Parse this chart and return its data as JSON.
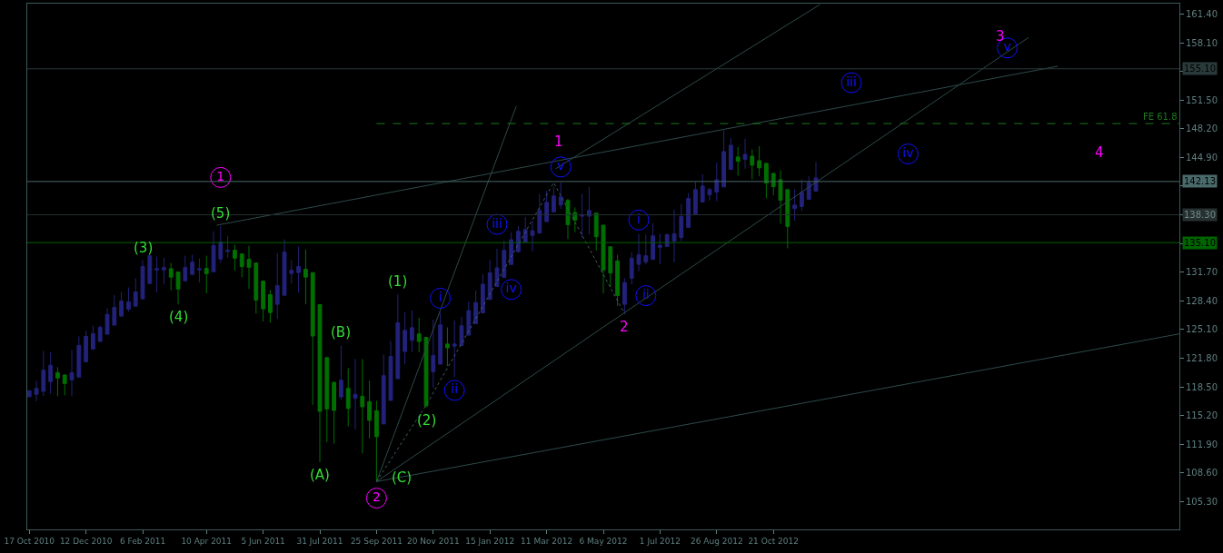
{
  "chart_data": {
    "type": "candlestick",
    "x": [
      "2010-10-17",
      "2010-10-24",
      "2010-10-31",
      "2010-11-07",
      "2010-11-14",
      "2010-11-21",
      "2010-11-28",
      "2010-12-05",
      "2010-12-12",
      "2010-12-19",
      "2010-12-26",
      "2011-01-02",
      "2011-01-09",
      "2011-01-16",
      "2011-01-23",
      "2011-01-30",
      "2011-02-06",
      "2011-02-13",
      "2011-02-20",
      "2011-02-27",
      "2011-03-06",
      "2011-03-13",
      "2011-03-20",
      "2011-03-27",
      "2011-04-03",
      "2011-04-10",
      "2011-04-17",
      "2011-04-24",
      "2011-05-01",
      "2011-05-08",
      "2011-05-15",
      "2011-05-22",
      "2011-05-29",
      "2011-06-05",
      "2011-06-12",
      "2011-06-19",
      "2011-06-26",
      "2011-07-03",
      "2011-07-10",
      "2011-07-17",
      "2011-07-24",
      "2011-07-31",
      "2011-08-07",
      "2011-08-14",
      "2011-08-21",
      "2011-08-28",
      "2011-09-04",
      "2011-09-11",
      "2011-09-18",
      "2011-09-25",
      "2011-10-02",
      "2011-10-09",
      "2011-10-16",
      "2011-10-23",
      "2011-10-30",
      "2011-11-06",
      "2011-11-13",
      "2011-11-20",
      "2011-11-27",
      "2011-12-04",
      "2011-12-11",
      "2011-12-18",
      "2011-12-25",
      "2012-01-01",
      "2012-01-08",
      "2012-01-15",
      "2012-01-22",
      "2012-01-29",
      "2012-02-05",
      "2012-02-12",
      "2012-02-19",
      "2012-02-26",
      "2012-03-04",
      "2012-03-11",
      "2012-03-18",
      "2012-03-25",
      "2012-04-01",
      "2012-04-08",
      "2012-04-15",
      "2012-04-22",
      "2012-04-29",
      "2012-05-06",
      "2012-05-13",
      "2012-05-20",
      "2012-05-27",
      "2012-06-03",
      "2012-06-10",
      "2012-06-17",
      "2012-06-24",
      "2012-07-01",
      "2012-07-08",
      "2012-07-15",
      "2012-07-22",
      "2012-07-29",
      "2012-08-05",
      "2012-08-12",
      "2012-08-19",
      "2012-08-26",
      "2012-09-02",
      "2012-09-09",
      "2012-09-16",
      "2012-09-23",
      "2012-09-30",
      "2012-10-07",
      "2012-10-14",
      "2012-10-21",
      "2012-10-28",
      "2012-11-04",
      "2012-11-11",
      "2012-11-18",
      "2012-11-25",
      "2012-12-02"
    ],
    "series": [
      {
        "type": "line",
        "color": "#2f4a4a",
        "line_style": "solid",
        "x": [
          "2011-09-25",
          "2013-11-26"
        ],
        "values": [
          107.6,
          124.6
        ]
      },
      {
        "type": "line",
        "color": "#2f4a4a",
        "line_style": "solid",
        "x": [
          "2011-09-25",
          "2013-06-30"
        ],
        "values": [
          107.6,
          158.7
        ]
      },
      {
        "type": "line",
        "color": "#2f4a4a",
        "line_style": "solid",
        "x": [
          "2011-09-25",
          "2012-02-10"
        ],
        "values": [
          107.6,
          150.8
        ]
      },
      {
        "type": "line",
        "color": "#2f4a4a",
        "line_style": "solid",
        "x": [
          "2012-03-20",
          "2012-12-06"
        ],
        "values": [
          143.6,
          162.5
        ]
      },
      {
        "type": "line",
        "color": "#2f4a4a",
        "line_style": "solid",
        "x": [
          "2011-04-20",
          "2013-07-29"
        ],
        "values": [
          137.1,
          155.4
        ]
      },
      {
        "type": "line",
        "color": "#3f5f5f",
        "line_style": "dotted",
        "x": [
          "2011-09-25",
          "2011-11-13",
          "2012-03-18",
          "2012-05-27"
        ],
        "values": [
          107.6,
          116.4,
          142.0,
          126.9
        ]
      },
      {
        "type": "line",
        "name": "FE 61.8",
        "color": "#1e7a1e",
        "line_style": "dashed",
        "x": [
          "2011-09-25",
          "2013-11-26"
        ],
        "values": [
          148.8,
          148.8
        ]
      },
      {
        "type": "scatter",
        "marker": "circle",
        "color": "#ff00ff",
        "x": [
          "2011-04-24",
          "2011-09-25"
        ],
        "values": [
          142.6,
          105.7
        ]
      },
      {
        "type": "scatter",
        "marker": "circle",
        "color": "#1010ff",
        "x": [
          "2011-11-27",
          "2011-12-11",
          "2012-01-22",
          "2012-02-05",
          "2012-03-25",
          "2012-06-10",
          "2012-06-17",
          "2013-01-06",
          "2013-03-03",
          "2013-06-09"
        ],
        "values": [
          128.7,
          118.1,
          137.2,
          129.7,
          143.8,
          137.7,
          129.0,
          153.5,
          145.3,
          157.5
        ]
      },
      {
        "ohlc": [
          [
            117.36,
            118.06,
            117.36,
            118.06
          ],
          [
            117.64,
            119.2,
            116.84,
            118.33
          ],
          [
            117.99,
            122.64,
            117.46,
            120.42
          ],
          [
            119.1,
            122.5,
            117.71,
            120.98
          ],
          [
            120.14,
            120.77,
            117.43,
            119.52
          ],
          [
            119.86,
            119.97,
            117.53,
            118.89
          ],
          [
            119.31,
            122.75,
            117.43,
            120.14
          ],
          [
            119.62,
            124.31,
            119.62,
            123.27
          ],
          [
            121.39,
            124.94,
            121.39,
            124.31
          ],
          [
            122.85,
            125.56,
            122.85,
            124.63
          ],
          [
            123.72,
            125.56,
            123.72,
            125.36
          ],
          [
            124.56,
            127.55,
            124.56,
            126.85
          ],
          [
            125.6,
            129.07,
            125.6,
            127.65
          ],
          [
            126.64,
            129.42,
            126.64,
            128.38
          ],
          [
            127.44,
            129.94,
            127.16,
            128.28
          ],
          [
            127.79,
            130.99,
            127.79,
            129.42
          ],
          [
            128.62,
            133.07,
            128.62,
            132.34
          ],
          [
            130.4,
            133.59,
            130.4,
            133.59
          ],
          [
            131.96,
            133.49,
            129.35,
            132.1
          ],
          [
            131.96,
            133.38,
            130.29,
            132.24
          ],
          [
            132.1,
            132.76,
            129.6,
            131.13
          ],
          [
            131.72,
            131.72,
            127.99,
            129.77
          ],
          [
            130.71,
            133.59,
            130.6,
            132.24
          ],
          [
            131.44,
            133.7,
            131.44,
            132.86
          ],
          [
            131.96,
            133.28,
            130.5,
            132.1
          ],
          [
            132.13,
            133.59,
            129.25,
            131.54
          ],
          [
            131.75,
            136.41,
            131.75,
            134.78
          ],
          [
            133.21,
            137.0,
            132.76,
            135.16
          ],
          [
            134.08,
            135.89,
            133.35,
            134.22
          ],
          [
            134.22,
            134.85,
            131.89,
            133.31
          ],
          [
            133.8,
            133.8,
            131.13,
            132.34
          ],
          [
            133.18,
            134.74,
            129.77,
            132.27
          ],
          [
            132.76,
            132.76,
            126.92,
            128.48
          ],
          [
            130.67,
            130.67,
            126.02,
            127.48
          ],
          [
            129.11,
            129.63,
            125.88,
            127.06
          ],
          [
            128.0,
            133.91,
            126.33,
            130.15
          ],
          [
            129.04,
            135.47,
            129.04,
            134.01
          ],
          [
            131.54,
            133.07,
            130.4,
            131.92
          ],
          [
            131.65,
            134.64,
            129.35,
            132.34
          ],
          [
            132.03,
            134.32,
            128.0,
            131.13
          ],
          [
            131.65,
            131.65,
            116.42,
            124.35
          ],
          [
            127.96,
            127.96,
            109.85,
            115.69
          ],
          [
            121.87,
            121.87,
            112.14,
            115.96
          ],
          [
            119.02,
            119.09,
            111.97,
            115.79
          ],
          [
            117.35,
            123.26,
            117.01,
            119.27
          ],
          [
            118.33,
            120.66,
            113.95,
            116.03
          ],
          [
            117.18,
            121.7,
            113.6,
            117.63
          ],
          [
            117.42,
            121.7,
            110.82,
            116.21
          ],
          [
            116.8,
            119.23,
            112.56,
            114.64
          ],
          [
            115.76,
            116.9,
            107.6,
            112.77
          ],
          [
            114.23,
            122.22,
            114.23,
            119.79
          ],
          [
            116.94,
            123.79,
            116.94,
            122.01
          ],
          [
            119.44,
            129.17,
            119.44,
            125.87
          ],
          [
            122.57,
            127.09,
            121.11,
            125.0
          ],
          [
            123.86,
            127.3,
            122.5,
            125.31
          ],
          [
            124.59,
            126.46,
            122.5,
            123.72
          ],
          [
            124.2,
            124.2,
            116.14,
            116.31
          ],
          [
            120.24,
            126.25,
            118.4,
            122.12
          ],
          [
            121.11,
            127.02,
            121.11,
            125.63
          ],
          [
            123.43,
            125.35,
            120.9,
            122.99
          ],
          [
            123.19,
            126.15,
            119.62,
            123.43
          ],
          [
            123.26,
            126.57,
            123.26,
            125.52
          ],
          [
            124.45,
            128.3,
            124.45,
            127.26
          ],
          [
            125.77,
            129.59,
            125.77,
            128.2
          ],
          [
            127.02,
            131.43,
            127.02,
            130.32
          ],
          [
            128.55,
            133.07,
            128.55,
            131.61
          ],
          [
            130.04,
            134.39,
            130.04,
            132.2
          ],
          [
            131.09,
            135.36,
            131.09,
            134.21
          ],
          [
            132.58,
            136.3,
            132.58,
            135.43
          ],
          [
            134.04,
            136.99,
            134.04,
            136.4
          ],
          [
            135.15,
            138.04,
            135.15,
            136.61
          ],
          [
            135.92,
            137.59,
            134.11,
            136.47
          ],
          [
            136.19,
            140.71,
            136.19,
            138.8
          ],
          [
            137.52,
            141.06,
            137.52,
            139.74
          ],
          [
            138.63,
            141.51,
            138.63,
            140.47
          ],
          [
            139.43,
            142.03,
            138.98,
            140.37
          ],
          [
            139.95,
            140.12,
            135.5,
            137.17
          ],
          [
            138.56,
            139.15,
            136.3,
            137.69
          ],
          [
            138.14,
            140.71,
            135.71,
            138.28
          ],
          [
            138.14,
            141.51,
            136.02,
            138.8
          ],
          [
            138.49,
            138.49,
            134.21,
            135.78
          ],
          [
            137.1,
            137.1,
            129.24,
            131.95
          ],
          [
            134.63,
            134.63,
            130.0,
            131.6
          ],
          [
            133.0,
            133.7,
            127.8,
            129.0
          ],
          [
            128.0,
            131.0,
            126.9,
            130.5
          ],
          [
            131.0,
            134.0,
            130.3,
            133.3
          ],
          [
            132.6,
            136.1,
            131.8,
            133.7
          ],
          [
            132.89,
            136.02,
            132.6,
            133.58
          ],
          [
            133.17,
            137.34,
            133.17,
            135.88
          ],
          [
            134.56,
            136.12,
            132.6,
            134.8
          ],
          [
            134.66,
            136.12,
            134.66,
            136.02
          ],
          [
            135.25,
            138.9,
            132.82,
            136.12
          ],
          [
            135.7,
            139.53,
            135.25,
            138.1
          ],
          [
            136.85,
            140.81,
            136.85,
            140.19
          ],
          [
            138.42,
            142.1,
            138.42,
            141.2
          ],
          [
            139.77,
            142.97,
            139.77,
            141.61
          ],
          [
            140.61,
            141.4,
            139.94,
            141.2
          ],
          [
            140.92,
            144.29,
            139.88,
            142.34
          ],
          [
            141.51,
            148.01,
            141.51,
            145.58
          ],
          [
            143.53,
            147.14,
            143.53,
            146.31
          ],
          [
            144.95,
            146.1,
            142.8,
            144.46
          ],
          [
            144.67,
            147.04,
            143.6,
            145.26
          ],
          [
            145.05,
            145.82,
            142.38,
            144.01
          ],
          [
            144.53,
            146.2,
            142.73,
            143.7
          ],
          [
            144.22,
            144.22,
            140.19,
            141.96
          ],
          [
            143.07,
            143.07,
            140.54,
            141.54
          ],
          [
            142.34,
            143.42,
            137.27,
            139.98
          ],
          [
            141.2,
            141.2,
            134.45,
            136.96
          ],
          [
            139.01,
            141.2,
            137.62,
            139.42
          ],
          [
            139.25,
            142.38,
            138.76,
            140.88
          ],
          [
            140.08,
            142.73,
            140.08,
            141.99
          ],
          [
            141.02,
            144.39,
            141.02,
            142.55
          ]
        ],
        "colors": [
          "#22227a",
          "#22227a",
          "#22227a",
          "#22227a",
          "#007000",
          "#007000",
          "#22227a",
          "#22227a",
          "#22227a",
          "#22227a",
          "#22227a",
          "#22227a",
          "#22227a",
          "#22227a",
          "#22227a",
          "#22227a",
          "#22227a",
          "#22227a",
          "#22227a",
          "#22227a",
          "#007000",
          "#007000",
          "#22227a",
          "#22227a",
          "#22227a",
          "#007000",
          "#22227a",
          "#22227a",
          "#22227a",
          "#007000",
          "#007000",
          "#007000",
          "#007000",
          "#007000",
          "#007000",
          "#22227a",
          "#22227a",
          "#22227a",
          "#22227a",
          "#007000",
          "#007000",
          "#007000",
          "#007000",
          "#007000",
          "#22227a",
          "#007000",
          "#22227a",
          "#007000",
          "#007000",
          "#007000",
          "#22227a",
          "#22227a",
          "#22227a",
          "#22227a",
          "#22227a",
          "#007000",
          "#007000",
          "#22227a",
          "#22227a",
          "#007000",
          "#22227a",
          "#22227a",
          "#22227a",
          "#22227a",
          "#22227a",
          "#22227a",
          "#22227a",
          "#22227a",
          "#22227a",
          "#22227a",
          "#22227a",
          "#22227a",
          "#22227a",
          "#22227a",
          "#22227a",
          "#22227a",
          "#007000",
          "#007000",
          "#22227a",
          "#22227a",
          "#007000",
          "#007000",
          "#007000",
          "#007000",
          "#22227a",
          "#22227a",
          "#22227a",
          "#22227a",
          "#22227a",
          "#22227a",
          "#22227a",
          "#22227a",
          "#22227a",
          "#22227a",
          "#22227a",
          "#22227a",
          "#22227a",
          "#22227a",
          "#22227a",
          "#22227a",
          "#007000",
          "#22227a",
          "#007000",
          "#007000",
          "#007000",
          "#007000",
          "#007000",
          "#007000",
          "#22227a",
          "#22227a",
          "#22227a",
          "#22227a"
        ]
      }
    ],
    "xlim": [
      "2010-10-15",
      "2013-11-26"
    ],
    "xticks": [
      {
        "value": "2010-10-17",
        "label": "17 Oct 2010"
      },
      {
        "value": "2010-12-12",
        "label": "12 Dec 2010"
      },
      {
        "value": "2011-02-06",
        "label": "6 Feb 2011"
      },
      {
        "value": "2011-04-10",
        "label": "10 Apr 2011"
      },
      {
        "value": "2011-06-05",
        "label": "5 Jun 2011"
      },
      {
        "value": "2011-07-31",
        "label": "31 Jul 2011"
      },
      {
        "value": "2011-09-25",
        "label": "25 Sep 2011"
      },
      {
        "value": "2011-11-20",
        "label": "20 Nov 2011"
      },
      {
        "value": "2012-01-15",
        "label": "15 Jan 2012"
      },
      {
        "value": "2012-03-11",
        "label": "11 Mar 2012"
      },
      {
        "value": "2012-05-06",
        "label": "6 May 2012"
      },
      {
        "value": "2012-07-01",
        "label": "1 Jul 2012"
      },
      {
        "value": "2012-08-26",
        "label": "26 Aug 2012"
      },
      {
        "value": "2012-10-21",
        "label": "21 Oct 2012"
      }
    ],
    "ylim": [
      102.1,
      162.6
    ],
    "yticks": [
      {
        "value": 161.4,
        "label": "161.40"
      },
      {
        "value": 158.1,
        "label": "158.10"
      },
      {
        "value": 154.8,
        "label": null
      },
      {
        "value": 151.5,
        "label": "151.50"
      },
      {
        "value": 148.2,
        "label": "148.20"
      },
      {
        "value": 144.9,
        "label": "144.90"
      },
      {
        "value": 141.6,
        "label": null
      },
      {
        "value": 138.3,
        "label": null
      },
      {
        "value": 135.0,
        "label": null
      },
      {
        "value": 131.7,
        "label": "131.70"
      },
      {
        "value": 128.4,
        "label": "128.40"
      },
      {
        "value": 125.1,
        "label": "125.10"
      },
      {
        "value": 121.8,
        "label": "121.80"
      },
      {
        "value": 118.5,
        "label": "118.50"
      },
      {
        "value": 115.2,
        "label": "115.20"
      },
      {
        "value": 111.9,
        "label": "111.90"
      },
      {
        "value": 108.6,
        "label": "108.60"
      },
      {
        "value": 105.3,
        "label": "105.30"
      }
    ],
    "ref_lines": [
      {
        "axis": "y",
        "value": 155.1,
        "label": "155.10",
        "color": "#2a3a3a"
      },
      {
        "axis": "y",
        "value": 142.13,
        "label": "142.13",
        "color": "#4a6a6a"
      },
      {
        "axis": "y",
        "value": 138.3,
        "label": "138.30",
        "color": "#263030"
      },
      {
        "axis": "y",
        "value": 135.1,
        "label": "135.10",
        "color": "#006400"
      }
    ],
    "annotations": [
      "1",
      "3",
      "4",
      "(C)",
      {
        "text": "2",
        "x": "2012-05-27",
        "y": 126.9
      },
      {
        "text": "(5)",
        "x": "2011-04-24",
        "y": 137.0
      },
      {
        "text": "(3)",
        "x": "2011-02-06",
        "y": 133.07
      },
      {
        "text": "(4)",
        "x": "2011-03-13",
        "y": 127.99
      },
      {
        "text": "(B)",
        "x": "2011-08-21",
        "y": 123.26
      },
      {
        "text": "(A)",
        "x": "2011-07-31",
        "y": 109.85
      },
      {
        "text": "(1)",
        "x": "2011-10-16",
        "y": 129.17
      },
      {
        "text": "(2)",
        "x": "2011-11-13",
        "y": 116.14
      },
      {
        "text": "i",
        "x": "2011-11-27",
        "y": 128.7
      },
      {
        "text": "ii",
        "x": "2011-12-11",
        "y": 118.1
      },
      {
        "text": "iii",
        "x": "2012-01-22",
        "y": 137.2
      },
      {
        "text": "iv",
        "x": "2012-02-05",
        "y": 129.7
      },
      {
        "text": "v",
        "x": "2012-03-25",
        "y": 143.8
      },
      {
        "text": "i",
        "x": "2012-06-10",
        "y": 137.7
      },
      {
        "text": "ii",
        "x": "2012-06-17",
        "y": 129.0
      },
      {
        "text": "iii",
        "x": "2013-01-06",
        "y": 153.5
      },
      {
        "text": "iv",
        "x": "2013-03-03",
        "y": 145.3
      },
      {
        "text": "v",
        "x": "2013-06-09",
        "y": 157.5
      },
      {
        "text": "1",
        "x": "2011-04-24",
        "y": 142.6
      },
      {
        "text": "2",
        "x": "2011-09-25",
        "y": 105.7
      }
    ],
    "grid": false,
    "legend": false
  }
}
